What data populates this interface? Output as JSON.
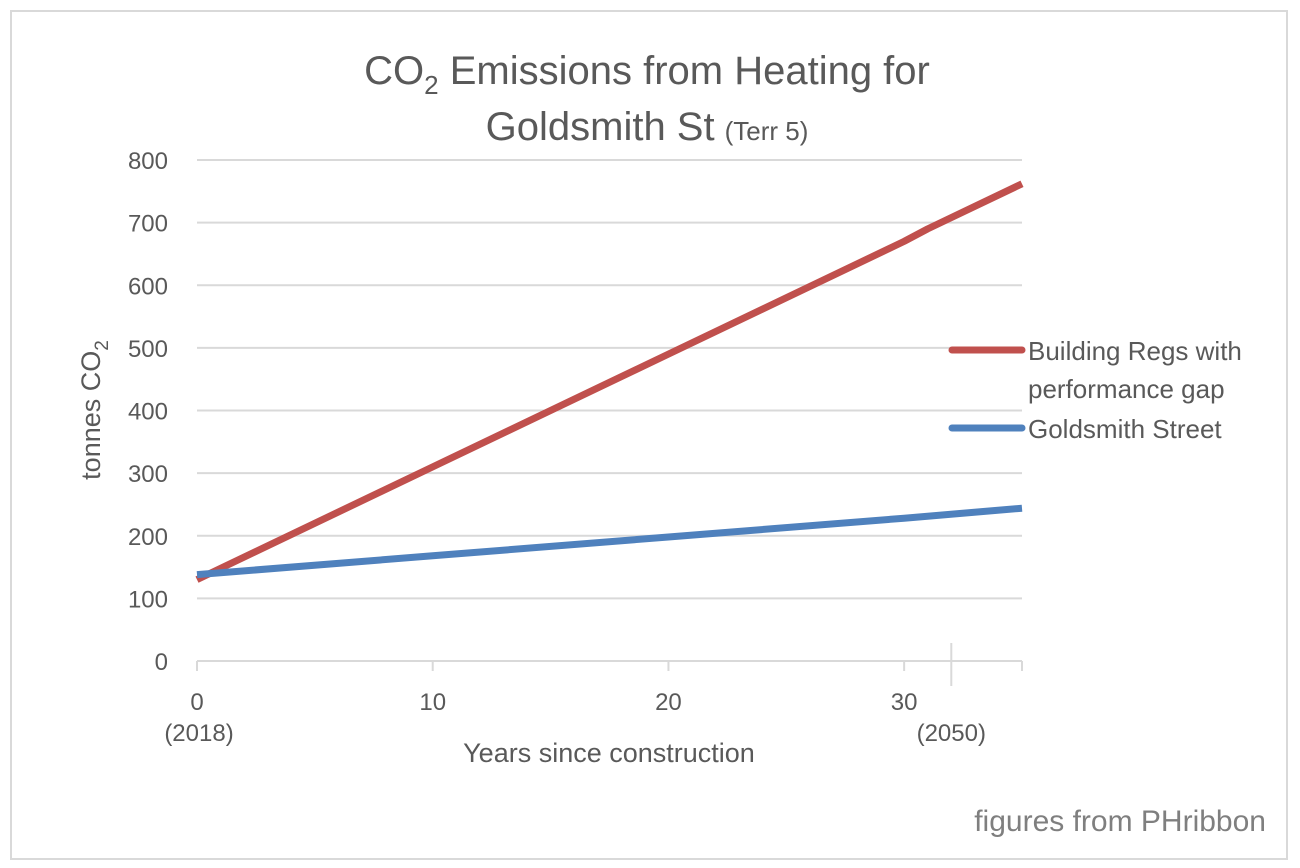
{
  "chart_data": {
    "type": "line",
    "title": {
      "line1_prefix": "CO",
      "line1_sub": "2",
      "line1_suffix": " Emissions from Heating for",
      "line2_main": "Goldsmith St",
      "line2_small": "(Terr 5)"
    },
    "xlabel": "Years since construction",
    "ylabel": {
      "main": "tonnes  CO",
      "sub": "2"
    },
    "xlim": [
      0,
      35
    ],
    "ylim": [
      0,
      800
    ],
    "yticks": [
      "0",
      "100",
      "200",
      "300",
      "400",
      "500",
      "600",
      "700",
      "800"
    ],
    "xticks": [
      {
        "value": 0,
        "label": "0"
      },
      {
        "value": 10,
        "label": "10"
      },
      {
        "value": 20,
        "label": "20"
      },
      {
        "value": 30,
        "label": "30"
      }
    ],
    "x_annotations": [
      {
        "value": 0,
        "label": "(2018)"
      },
      {
        "value": 32,
        "label": "(2050)"
      }
    ],
    "marker_line_x": 32,
    "grid": true,
    "legend_position": "right",
    "series": [
      {
        "name": "Building Regs with performance gap",
        "name_lines": [
          "Building Regs with",
          "performance gap"
        ],
        "color": "#c0504d",
        "points": [
          [
            0,
            130
          ],
          [
            10,
            310
          ],
          [
            20,
            490
          ],
          [
            30,
            670
          ],
          [
            31,
            690
          ],
          [
            35,
            762
          ]
        ]
      },
      {
        "name": "Goldsmith Street",
        "name_lines": [
          "Goldsmith Street"
        ],
        "color": "#4f81bd",
        "points": [
          [
            0,
            138
          ],
          [
            10,
            168
          ],
          [
            20,
            198
          ],
          [
            30,
            228
          ],
          [
            35,
            244
          ]
        ]
      }
    ],
    "note": "figures from PHribbon"
  }
}
